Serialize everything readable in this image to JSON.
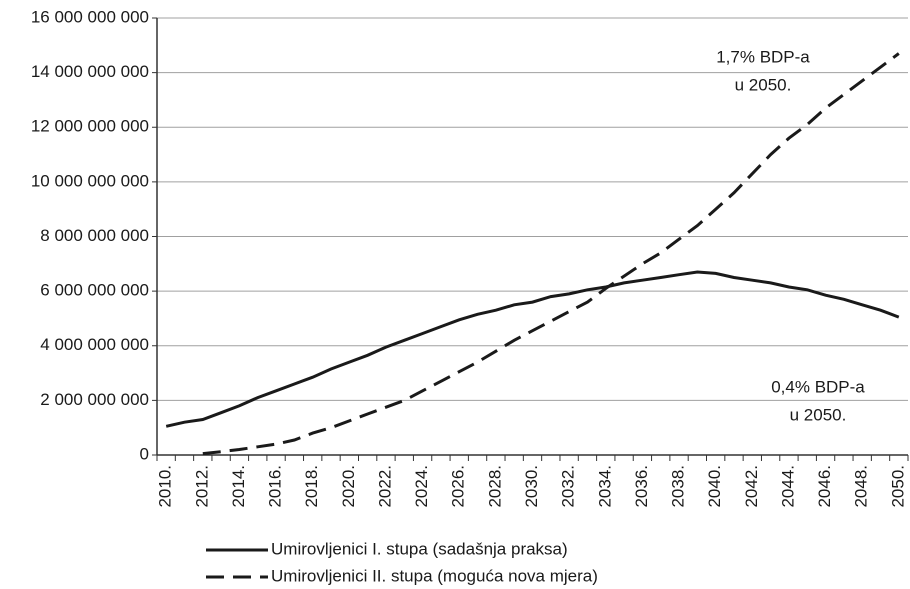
{
  "chart_data": {
    "type": "line",
    "categories": [
      "2010.",
      null,
      "2012.",
      null,
      "2014.",
      null,
      "2016.",
      null,
      "2018.",
      null,
      "2020.",
      null,
      "2022.",
      null,
      "2024.",
      null,
      "2026.",
      null,
      "2028.",
      null,
      "2030.",
      null,
      "2032.",
      null,
      "2034.",
      null,
      "2036.",
      null,
      "2038.",
      null,
      "2040.",
      null,
      "2042.",
      null,
      "2044.",
      null,
      "2046.",
      null,
      "2048.",
      null,
      "2050."
    ],
    "series": [
      {
        "name": "Umirovljenici I. stupa (sadašnja praksa)",
        "color": "#1a1a1a",
        "dash": "solid",
        "values": [
          1050000000,
          1200000000,
          1300000000,
          1550000000,
          1800000000,
          2100000000,
          2350000000,
          2600000000,
          2850000000,
          3150000000,
          3400000000,
          3650000000,
          3950000000,
          4200000000,
          4450000000,
          4700000000,
          4950000000,
          5150000000,
          5300000000,
          5500000000,
          5600000000,
          5800000000,
          5900000000,
          6050000000,
          6150000000,
          6300000000,
          6400000000,
          6500000000,
          6600000000,
          6700000000,
          6650000000,
          6500000000,
          6400000000,
          6300000000,
          6150000000,
          6050000000,
          5850000000,
          5700000000,
          5500000000,
          5300000000,
          5050000000
        ]
      },
      {
        "name": "Umirovljenici II. stupa (moguća nova mjera)",
        "color": "#1a1a1a",
        "dash": "dashed",
        "values": [
          null,
          null,
          50000000,
          120000000,
          200000000,
          300000000,
          400000000,
          550000000,
          800000000,
          1000000000,
          1250000000,
          1500000000,
          1750000000,
          2000000000,
          2350000000,
          2700000000,
          3050000000,
          3400000000,
          3800000000,
          4200000000,
          4550000000,
          4900000000,
          5250000000,
          5600000000,
          6100000000,
          6550000000,
          7000000000,
          7400000000,
          7900000000,
          8400000000,
          9000000000,
          9600000000,
          10300000000,
          11000000000,
          11600000000,
          12100000000,
          12700000000,
          13200000000,
          13700000000,
          14200000000,
          14700000000
        ]
      }
    ],
    "annotations": [
      "1,7% BDP-a",
      "u 2050.",
      "0,4% BDP-a",
      "u 2050."
    ],
    "ylim": [
      0,
      16000000000
    ],
    "yticks": [
      0,
      {
        "value": 2000000000,
        "label": "2 000 000 000"
      },
      {
        "value": 4000000000,
        "label": "4 000 000 000"
      },
      {
        "value": 6000000000,
        "label": "6 000 000 000"
      },
      {
        "value": 8000000000,
        "label": "8 000 000 000"
      },
      {
        "value": 10000000000,
        "label": "10 000 000 000"
      },
      {
        "value": 12000000000,
        "label": "12 000 000 000"
      },
      {
        "value": 14000000000,
        "label": "14 000 000 000"
      },
      {
        "value": 16000000000,
        "label": "16 000 000 000"
      }
    ],
    "grid": true,
    "legend": "bottom"
  }
}
